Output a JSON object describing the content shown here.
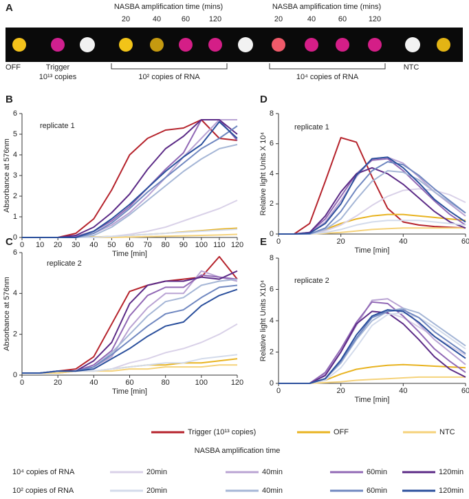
{
  "panel_a": {
    "label": "A",
    "headers": [
      "NASBA amplification time (mins)",
      "NASBA amplification time (mins)"
    ],
    "times": [
      [
        20,
        40,
        60,
        120
      ],
      [
        20,
        40,
        60,
        120
      ]
    ],
    "off": "OFF",
    "trigger": [
      "Trigger",
      "10¹³ copies"
    ],
    "groups": [
      "10² copies of RNA",
      "10⁴ copies of RNA"
    ],
    "ntc": "NTC"
  },
  "legend": {
    "title": "NASBA amplification time",
    "rows": [
      "10⁴ copies of RNA",
      "10² copies of RNA"
    ]
  },
  "chart_data": [
    {
      "type": "line",
      "panel": "B",
      "annotation": "replicate 1",
      "xlabel": "Time [min]",
      "ylabel": "Absorbance at 576nm",
      "x": [
        0,
        10,
        20,
        30,
        40,
        50,
        60,
        70,
        80,
        90,
        100,
        110,
        120
      ],
      "xlim": [
        0,
        120
      ],
      "ylim": [
        0,
        6
      ],
      "xticks": [
        0,
        10,
        20,
        30,
        40,
        50,
        60,
        70,
        80,
        90,
        100,
        110,
        120
      ],
      "yticks": [
        0,
        1,
        2,
        3,
        4,
        5,
        6
      ],
      "series": [
        {
          "name": "Trigger (10¹³ copies)",
          "color": "#b5222b",
          "values": [
            0,
            0,
            0,
            0.2,
            0.9,
            2.3,
            4.0,
            4.8,
            5.2,
            5.3,
            5.7,
            4.8,
            4.7
          ]
        },
        {
          "name": "OFF",
          "color": "#e8b320",
          "values": [
            0,
            0,
            0,
            0,
            0.02,
            0.05,
            0.1,
            0.15,
            0.2,
            0.27,
            0.33,
            0.4,
            0.45
          ]
        },
        {
          "name": "NTC",
          "color": "#f5d27a",
          "values": [
            0,
            0,
            0,
            0,
            0,
            0,
            0.02,
            0.04,
            0.06,
            0.08,
            0.1,
            0.12,
            0.15
          ]
        },
        {
          "name": "20min",
          "color": "#d9d1e8",
          "values": [
            0,
            0,
            0,
            0,
            0,
            0.05,
            0.15,
            0.3,
            0.5,
            0.8,
            1.1,
            1.4,
            1.8
          ]
        },
        {
          "name": "40min",
          "color": "#b9a3d3",
          "values": [
            0,
            0,
            0,
            0,
            0.2,
            0.6,
            1.2,
            2.0,
            2.9,
            3.9,
            4.8,
            5.7,
            5.7
          ]
        },
        {
          "name": "60min",
          "color": "#9168b5",
          "values": [
            0,
            0,
            0,
            0.05,
            0.3,
            0.8,
            1.5,
            2.4,
            3.3,
            4.1,
            5.7,
            5.7,
            4.7
          ]
        },
        {
          "name": "120min",
          "color": "#5b2a86",
          "values": [
            0,
            0,
            0,
            0.1,
            0.5,
            1.2,
            2.1,
            3.3,
            4.3,
            4.9,
            5.7,
            5.7,
            5.0
          ]
        },
        {
          "name": "20min",
          "color": "#d3dbeb",
          "values": [
            0,
            0,
            0,
            0,
            0,
            0.05,
            0.1,
            0.15,
            0.2,
            0.25,
            0.3,
            0.35,
            0.4
          ]
        },
        {
          "name": "40min",
          "color": "#a5b6d6",
          "values": [
            0,
            0,
            0,
            0,
            0.1,
            0.5,
            1.1,
            1.8,
            2.5,
            3.2,
            3.8,
            4.3,
            4.5
          ]
        },
        {
          "name": "60min",
          "color": "#6f87c0",
          "values": [
            0,
            0,
            0,
            0,
            0.2,
            0.7,
            1.4,
            2.2,
            2.9,
            3.6,
            4.3,
            4.8,
            5.4
          ]
        },
        {
          "name": "120min",
          "color": "#2a4f9c",
          "values": [
            0,
            0,
            0,
            0,
            0.3,
            0.9,
            1.6,
            2.4,
            3.2,
            3.9,
            4.5,
            5.6,
            4.8
          ]
        }
      ]
    },
    {
      "type": "line",
      "panel": "C",
      "annotation": "replicate 2",
      "xlabel": "Time [min]",
      "ylabel": "Absorbance at 576nm",
      "x": [
        0,
        10,
        20,
        30,
        40,
        50,
        60,
        70,
        80,
        90,
        100,
        110,
        120
      ],
      "xlim": [
        0,
        120
      ],
      "ylim": [
        0,
        6
      ],
      "xticks": [
        0,
        20,
        40,
        60,
        80,
        100,
        120
      ],
      "yticks": [
        0,
        2,
        4,
        6
      ],
      "series": [
        {
          "name": "Trigger (10¹³ copies)",
          "color": "#b5222b",
          "values": [
            0.1,
            0.1,
            0.2,
            0.3,
            0.9,
            2.5,
            4.1,
            4.4,
            4.6,
            4.7,
            4.8,
            5.8,
            4.7
          ]
        },
        {
          "name": "OFF",
          "color": "#e8b320",
          "values": [
            0.1,
            0.1,
            0.1,
            0.2,
            0.2,
            0.3,
            0.4,
            0.5,
            0.5,
            0.6,
            0.6,
            0.7,
            0.8
          ]
        },
        {
          "name": "NTC",
          "color": "#f5d27a",
          "values": [
            0.1,
            0.1,
            0.1,
            0.2,
            0.2,
            0.2,
            0.3,
            0.3,
            0.4,
            0.4,
            0.4,
            0.5,
            0.5
          ]
        },
        {
          "name": "20min",
          "color": "#d9d1e8",
          "values": [
            0.1,
            0.1,
            0.2,
            0.2,
            0.2,
            0.3,
            0.6,
            0.8,
            1.1,
            1.3,
            1.6,
            2.0,
            2.5
          ]
        },
        {
          "name": "40min",
          "color": "#b9a3d3",
          "values": [
            0.1,
            0.1,
            0.2,
            0.2,
            0.4,
            0.9,
            2.3,
            3.3,
            4.0,
            4.0,
            5.1,
            4.8,
            4.6
          ]
        },
        {
          "name": "60min",
          "color": "#9168b5",
          "values": [
            0.1,
            0.1,
            0.2,
            0.2,
            0.5,
            1.2,
            2.9,
            3.9,
            4.3,
            4.3,
            4.9,
            4.8,
            4.7
          ]
        },
        {
          "name": "120min",
          "color": "#5b2a86",
          "values": [
            0.1,
            0.1,
            0.2,
            0.2,
            0.7,
            1.6,
            3.5,
            4.4,
            4.6,
            4.6,
            4.8,
            4.7,
            5.1
          ]
        },
        {
          "name": "20min",
          "color": "#d3dbeb",
          "values": [
            0.1,
            0.1,
            0.2,
            0.2,
            0.2,
            0.3,
            0.4,
            0.5,
            0.6,
            0.6,
            0.8,
            0.9,
            1.0
          ]
        },
        {
          "name": "40min",
          "color": "#a5b6d6",
          "values": [
            0.1,
            0.1,
            0.2,
            0.2,
            0.4,
            1.1,
            2.0,
            2.9,
            3.6,
            3.8,
            4.4,
            4.6,
            4.7
          ]
        },
        {
          "name": "60min",
          "color": "#6f87c0",
          "values": [
            0.1,
            0.1,
            0.2,
            0.2,
            0.4,
            1.0,
            1.7,
            2.4,
            3.0,
            3.2,
            3.8,
            4.3,
            4.4
          ]
        },
        {
          "name": "120min",
          "color": "#2a4f9c",
          "values": [
            0.1,
            0.1,
            0.2,
            0.2,
            0.3,
            0.8,
            1.3,
            1.9,
            2.4,
            2.6,
            3.4,
            3.9,
            4.2
          ]
        }
      ]
    },
    {
      "type": "line",
      "panel": "D",
      "annotation": "replicate 1",
      "xlabel": "Time [min]",
      "ylabel": "Relative light Units X 10⁴",
      "x": [
        0,
        5,
        10,
        15,
        20,
        25,
        30,
        35,
        40,
        45,
        50,
        55,
        60
      ],
      "xlim": [
        0,
        60
      ],
      "ylim": [
        0,
        8
      ],
      "xticks": [
        0,
        20,
        40,
        60
      ],
      "yticks": [
        0,
        2,
        4,
        6,
        8
      ],
      "series": [
        {
          "name": "Trigger (10¹³ copies)",
          "color": "#b5222b",
          "values": [
            0,
            0,
            0.7,
            3.5,
            6.4,
            6.1,
            3.8,
            1.7,
            0.8,
            0.6,
            0.5,
            0.45,
            0.4
          ]
        },
        {
          "name": "OFF",
          "color": "#e8b320",
          "values": [
            0,
            0,
            0,
            0.3,
            0.7,
            1.0,
            1.2,
            1.3,
            1.3,
            1.2,
            1.1,
            1.0,
            0.9
          ]
        },
        {
          "name": "NTC",
          "color": "#f5d27a",
          "values": [
            0,
            0,
            0,
            0.05,
            0.1,
            0.2,
            0.3,
            0.35,
            0.4,
            0.4,
            0.4,
            0.4,
            0.4
          ]
        },
        {
          "name": "20min",
          "color": "#d9d1e8",
          "values": [
            0,
            0,
            0,
            0.2,
            0.6,
            1.2,
            1.9,
            2.5,
            2.9,
            3.0,
            2.9,
            2.6,
            2.1
          ]
        },
        {
          "name": "40min",
          "color": "#b9a3d3",
          "values": [
            0,
            0,
            0.05,
            0.8,
            2.2,
            3.8,
            5.0,
            5.1,
            4.7,
            3.8,
            2.8,
            2.0,
            1.2
          ]
        },
        {
          "name": "60min",
          "color": "#9168b5",
          "values": [
            0,
            0,
            0.1,
            1.0,
            2.5,
            4.0,
            4.9,
            5.0,
            4.2,
            3.2,
            2.2,
            1.3,
            0.6
          ]
        },
        {
          "name": "120min",
          "color": "#5b2a86",
          "values": [
            0,
            0,
            0.1,
            1.2,
            2.8,
            4.0,
            4.4,
            4.0,
            3.3,
            2.4,
            1.5,
            0.8,
            0.4
          ]
        },
        {
          "name": "20min",
          "color": "#d3dbeb",
          "values": [
            0,
            0,
            0,
            0.1,
            0.3,
            0.6,
            0.8,
            0.9,
            0.9,
            0.9,
            0.8,
            0.7,
            0.6
          ]
        },
        {
          "name": "40min",
          "color": "#a5b6d6",
          "values": [
            0,
            0,
            0,
            0.3,
            1.0,
            2.3,
            3.5,
            4.2,
            4.1,
            3.6,
            2.8,
            2.1,
            1.4
          ]
        },
        {
          "name": "60min",
          "color": "#6f87c0",
          "values": [
            0,
            0,
            0,
            0.4,
            1.5,
            3.0,
            4.2,
            4.8,
            4.6,
            3.9,
            3.0,
            2.2,
            1.4
          ]
        },
        {
          "name": "120min",
          "color": "#2a4f9c",
          "values": [
            0,
            0,
            0.05,
            0.7,
            2.0,
            3.9,
            5.0,
            5.1,
            4.4,
            3.4,
            2.3,
            1.5,
            0.8
          ]
        }
      ]
    },
    {
      "type": "line",
      "panel": "E",
      "annotation": "replicate 2",
      "xlabel": "Time [min]",
      "ylabel": "Relative light Units X10⁴",
      "x": [
        0,
        5,
        10,
        15,
        20,
        25,
        30,
        35,
        40,
        45,
        50,
        55,
        60
      ],
      "xlim": [
        0,
        60
      ],
      "ylim": [
        0,
        8
      ],
      "xticks": [
        0,
        20,
        40,
        60
      ],
      "yticks": [
        0,
        2,
        4,
        6,
        8
      ],
      "series": [
        {
          "name": "OFF",
          "color": "#e8b320",
          "values": [
            0,
            0,
            0,
            0.2,
            0.6,
            0.9,
            1.05,
            1.15,
            1.2,
            1.15,
            1.1,
            1.05,
            1.0
          ]
        },
        {
          "name": "NTC",
          "color": "#f5d27a",
          "values": [
            0,
            0,
            0,
            0.05,
            0.1,
            0.2,
            0.25,
            0.3,
            0.35,
            0.4,
            0.4,
            0.4,
            0.4
          ]
        },
        {
          "name": "20min",
          "color": "#d9d1e8",
          "values": [
            0,
            0,
            0,
            0.3,
            1.3,
            2.8,
            4.3,
            4.5,
            4.2,
            3.6,
            3.0,
            2.4,
            1.8
          ]
        },
        {
          "name": "40min",
          "color": "#b9a3d3",
          "values": [
            0,
            0,
            0,
            0.6,
            2.0,
            3.7,
            5.3,
            5.4,
            4.8,
            3.8,
            2.8,
            2.0,
            1.2
          ]
        },
        {
          "name": "60min",
          "color": "#9168b5",
          "values": [
            0,
            0,
            0,
            0.7,
            2.2,
            3.9,
            5.2,
            5.1,
            4.3,
            3.3,
            2.2,
            1.4,
            0.7
          ]
        },
        {
          "name": "120min",
          "color": "#5b2a86",
          "values": [
            0,
            0,
            0,
            0.5,
            2.0,
            3.8,
            4.6,
            4.5,
            3.8,
            2.8,
            1.7,
            0.9,
            0.4
          ]
        },
        {
          "name": "20min",
          "color": "#d3dbeb",
          "values": [
            0,
            0,
            0,
            0.2,
            1.0,
            2.3,
            3.7,
            4.4,
            4.5,
            4.2,
            3.6,
            2.9,
            2.2
          ]
        },
        {
          "name": "40min",
          "color": "#a5b6d6",
          "values": [
            0,
            0,
            0,
            0.3,
            1.3,
            2.8,
            4.0,
            4.6,
            4.8,
            4.5,
            3.8,
            3.1,
            2.4
          ]
        },
        {
          "name": "60min",
          "color": "#6f87c0",
          "values": [
            0,
            0,
            0,
            0.3,
            1.4,
            2.9,
            4.2,
            4.6,
            4.7,
            4.2,
            3.3,
            2.6,
            1.9
          ]
        },
        {
          "name": "120min",
          "color": "#2a4f9c",
          "values": [
            0,
            0,
            0,
            0.3,
            1.5,
            3.1,
            4.3,
            4.7,
            4.6,
            3.9,
            3.0,
            2.3,
            1.6
          ]
        }
      ]
    }
  ]
}
